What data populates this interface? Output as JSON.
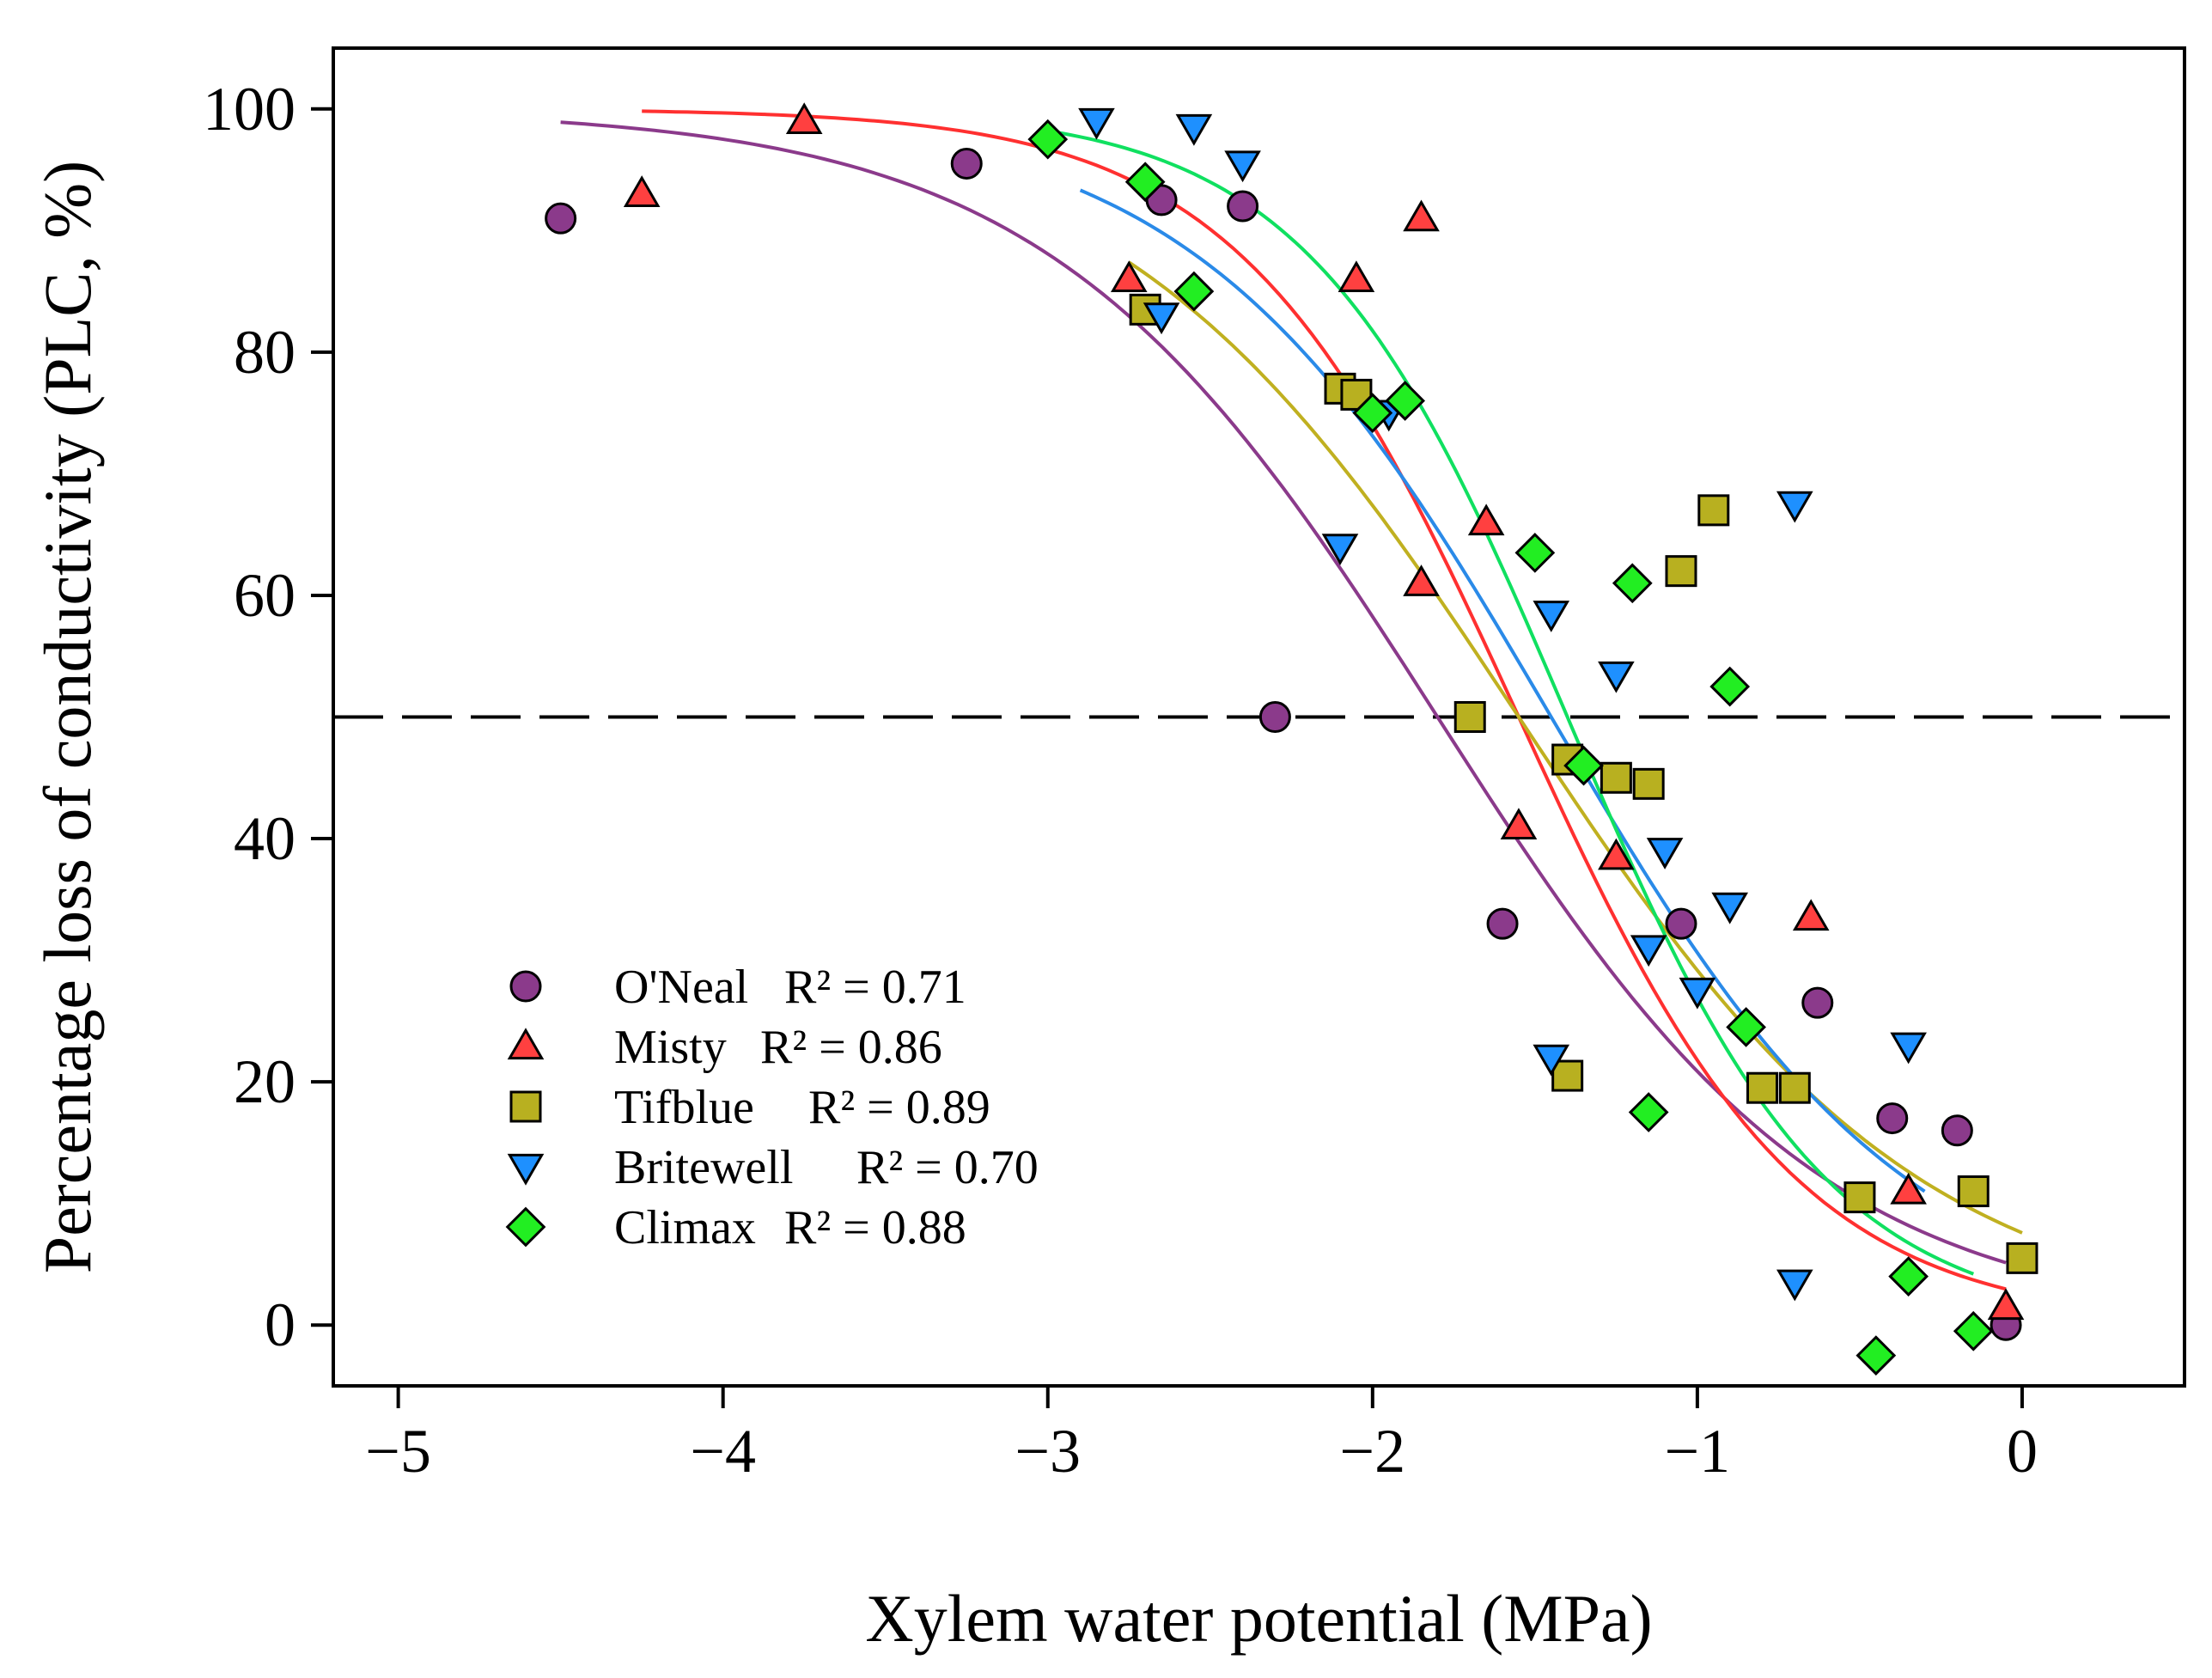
{
  "chart_data": {
    "type": "scatter",
    "xlabel": "Xylem water potential (MPa)",
    "ylabel": "Percentage loss of conductivity (PLC, %)",
    "xlim": [
      -5.2,
      0.5
    ],
    "ylim": [
      -5,
      105
    ],
    "xticks": [
      -5,
      -4,
      -3,
      -2,
      -1,
      0
    ],
    "xtick_labels": [
      "−5",
      "−4",
      "−3",
      "−2",
      "−1",
      "0"
    ],
    "yticks": [
      0,
      20,
      40,
      60,
      80,
      100
    ],
    "ytick_labels": [
      "0",
      "20",
      "40",
      "60",
      "80",
      "100"
    ],
    "reference_line": {
      "y": 50,
      "style": "dashed"
    },
    "legend_position": "lower-left",
    "series": [
      {
        "name": "O'Neal",
        "r2_label": "R² = 0.71",
        "marker": "circle",
        "color": "#8b3a8b",
        "line_color": "#8b3a8b",
        "points": [
          [
            -4.5,
            91
          ],
          [
            -3.25,
            95.5
          ],
          [
            -2.65,
            92.5
          ],
          [
            -2.4,
            92
          ],
          [
            -2.3,
            50
          ],
          [
            -1.6,
            33
          ],
          [
            -1.05,
            33
          ],
          [
            -0.63,
            26.5
          ],
          [
            -0.4,
            17
          ],
          [
            -0.2,
            16
          ],
          [
            -0.05,
            0
          ]
        ],
        "fit": {
          "x0": -1.8,
          "k": 0.6,
          "range": [
            -4.5,
            -0.05
          ]
        }
      },
      {
        "name": "Misty",
        "r2_label": "R² = 0.86",
        "marker": "triangle-up",
        "color": "#ff4040",
        "line_color": "#ff3030",
        "points": [
          [
            -4.25,
            93
          ],
          [
            -3.75,
            99
          ],
          [
            -2.75,
            86
          ],
          [
            -2.05,
            86
          ],
          [
            -1.85,
            91
          ],
          [
            -1.85,
            61
          ],
          [
            -1.65,
            66
          ],
          [
            -1.55,
            41
          ],
          [
            -1.25,
            38.5
          ],
          [
            -0.65,
            33.5
          ],
          [
            -0.35,
            11
          ],
          [
            -0.05,
            1.5
          ]
        ],
        "fit": {
          "x0": -1.55,
          "k": 0.43,
          "range": [
            -4.25,
            -0.05
          ]
        }
      },
      {
        "name": "Tifblue",
        "r2_label": "R² = 0.89",
        "marker": "square",
        "color": "#b8b020",
        "line_color": "#c0b020",
        "points": [
          [
            -2.7,
            83.5
          ],
          [
            -2.1,
            77
          ],
          [
            -2.05,
            76.5
          ],
          [
            -1.7,
            50
          ],
          [
            -1.4,
            46.5
          ],
          [
            -1.25,
            45
          ],
          [
            -1.15,
            44.5
          ],
          [
            -1.4,
            20.5
          ],
          [
            -1.05,
            62
          ],
          [
            -0.95,
            67
          ],
          [
            -0.8,
            19.5
          ],
          [
            -0.7,
            19.5
          ],
          [
            -0.5,
            10.5
          ],
          [
            -0.15,
            11
          ],
          [
            0.0,
            5.5
          ]
        ],
        "fit": {
          "x0": -1.55,
          "k": 0.62,
          "range": [
            -2.75,
            0.0
          ]
        }
      },
      {
        "name": "Britewell",
        "r2_label": "R² = 0.70",
        "marker": "triangle-down",
        "color": "#1e90ff",
        "line_color": "#2a8ae8",
        "points": [
          [
            -2.85,
            99
          ],
          [
            -2.55,
            98.5
          ],
          [
            -2.4,
            95.5
          ],
          [
            -2.65,
            83
          ],
          [
            -2.1,
            64
          ],
          [
            -1.95,
            75
          ],
          [
            -1.45,
            58.5
          ],
          [
            -1.45,
            22
          ],
          [
            -1.25,
            53.5
          ],
          [
            -1.1,
            39
          ],
          [
            -1.15,
            31
          ],
          [
            -1.0,
            27.5
          ],
          [
            -0.9,
            34.5
          ],
          [
            -0.7,
            3.5
          ],
          [
            -0.35,
            23
          ],
          [
            -0.7,
            67.5
          ]
        ],
        "fit": {
          "x0": -1.45,
          "k": 0.55,
          "range": [
            -2.9,
            -0.3
          ]
        }
      },
      {
        "name": "Climax",
        "r2_label": "R² = 0.88",
        "marker": "diamond",
        "color": "#22ee22",
        "line_color": "#10e060",
        "points": [
          [
            -3.0,
            97.5
          ],
          [
            -2.7,
            94
          ],
          [
            -2.55,
            85
          ],
          [
            -2.0,
            75
          ],
          [
            -1.9,
            76
          ],
          [
            -1.5,
            63.5
          ],
          [
            -1.35,
            46
          ],
          [
            -1.2,
            61
          ],
          [
            -1.15,
            17.5
          ],
          [
            -0.9,
            52.5
          ],
          [
            -0.85,
            24.5
          ],
          [
            -0.45,
            -2.5
          ],
          [
            -0.35,
            4
          ],
          [
            -0.15,
            -0.5
          ]
        ],
        "fit": {
          "x0": -1.4,
          "k": 0.4,
          "range": [
            -3.0,
            -0.15
          ]
        }
      }
    ]
  }
}
